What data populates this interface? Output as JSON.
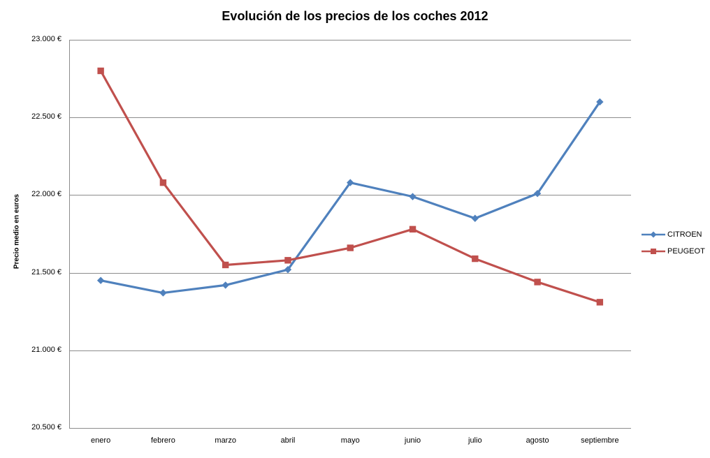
{
  "chart_data": {
    "type": "line",
    "title": "Evolución de los precios de los coches 2012",
    "ylabel": "Precio medio en euros",
    "xlabel": "",
    "categories": [
      "enero",
      "febrero",
      "marzo",
      "abril",
      "mayo",
      "junio",
      "julio",
      "agosto",
      "septiembre"
    ],
    "series": [
      {
        "name": "CITROEN",
        "color": "#4F81BD",
        "marker": "diamond",
        "values": [
          21450,
          21370,
          21420,
          21520,
          22080,
          21990,
          21850,
          22010,
          22600
        ]
      },
      {
        "name": "PEUGEOT",
        "color": "#C0504D",
        "marker": "square",
        "values": [
          22800,
          22080,
          21550,
          21580,
          21660,
          21780,
          21590,
          21440,
          21310
        ]
      }
    ],
    "ylim": [
      20500,
      23000
    ],
    "ytick_step": 500,
    "ytick_labels": [
      "20.500 €",
      "21.000 €",
      "21.500 €",
      "22.000 €",
      "22.500 €",
      "23.000 €"
    ],
    "grid": "horizontal-major",
    "legend_position": "right",
    "gridline_color": "#8C8C8C",
    "axis_color": "#8C8C8C",
    "background_color": "#FFFFFF"
  }
}
